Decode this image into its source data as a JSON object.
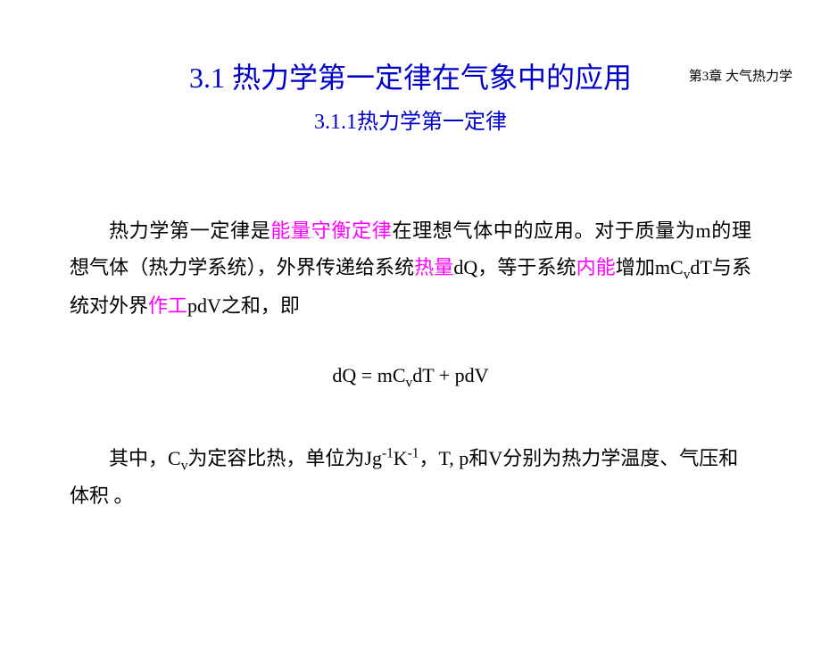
{
  "header": {
    "chapter": "第3章 大气热力学"
  },
  "title": {
    "main": "3.1 热力学第一定律在气象中的应用",
    "sub": "3.1.1热力学第一定律"
  },
  "para1": {
    "t1": "热力学第一定律是",
    "h1": "能量守衡定律",
    "t2": "在理想气体中的应用。对于质量为m的理想气体（热力学系统），外界传递给系统",
    "h2": "热量",
    "t3": "dQ，等于系统",
    "h3": "内能",
    "t4": "增加mC",
    "sub1": "v",
    "t5": "dT与系统对外界",
    "h4": "作工",
    "t6": "pdV之和，即"
  },
  "equation": {
    "lhs": "dQ = mC",
    "sub": "v",
    "rhs": "dT + pdV"
  },
  "note": {
    "t1": "其中，C",
    "sub1": "v",
    "t2": "为定容比热，单位为Jg",
    "sup1": "-1",
    "t3": "K",
    "sup2": "-1",
    "t4": "，T, p和V分别为热力学温度、气压和体积 。"
  },
  "colors": {
    "heading": "#0000cc",
    "highlight": "#ff00ff",
    "text": "#000000",
    "background": "#ffffff"
  },
  "fonts": {
    "title_size": 32,
    "subtitle_size": 24,
    "body_size": 22,
    "header_size": 15
  }
}
